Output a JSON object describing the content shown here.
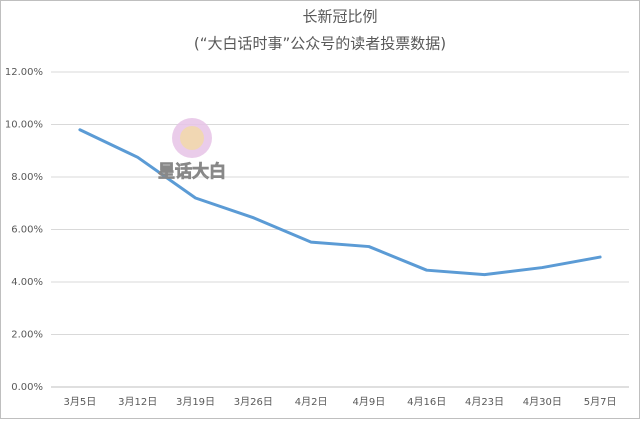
{
  "chart_data": {
    "type": "line",
    "title": "长新冠比例",
    "subtitle": "(“大白话时事”公众号的读者投票数据)",
    "watermark": "星话大白",
    "categories": [
      "3月5日",
      "3月12日",
      "3月19日",
      "3月26日",
      "4月2日",
      "4月9日",
      "4月16日",
      "4月23日",
      "4月30日",
      "5月7日"
    ],
    "series": [
      {
        "color": "#5b9bd5",
        "values": [
          9.8,
          8.75,
          7.2,
          6.45,
          5.52,
          5.35,
          4.45,
          4.28,
          4.55,
          4.95
        ]
      }
    ],
    "ylim": [
      0,
      12
    ],
    "yticks": [
      {
        "value": 0,
        "label": "0.00%"
      },
      {
        "value": 2,
        "label": "2.00%"
      },
      {
        "value": 4,
        "label": "4.00%"
      },
      {
        "value": 6,
        "label": "6.00%"
      },
      {
        "value": 8,
        "label": "8.00%"
      },
      {
        "value": 10,
        "label": "10.00%"
      },
      {
        "value": 12,
        "label": "12.00%"
      }
    ],
    "grid": true
  }
}
